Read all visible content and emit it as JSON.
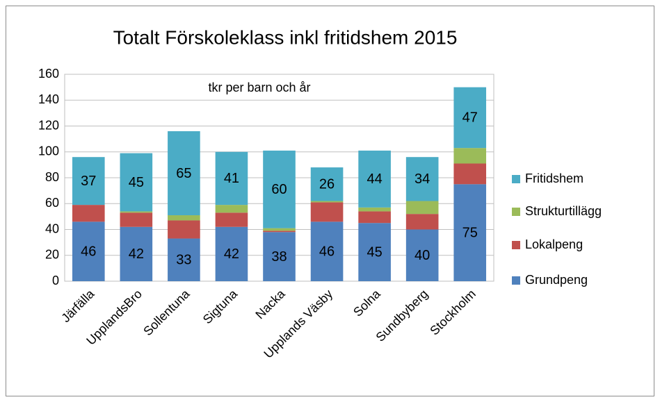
{
  "chart_data": {
    "type": "stacked_bar",
    "title": "Totalt Förskoleklass inkl fritidshem 2015",
    "annotation": "tkr per barn och år",
    "categories": [
      "Järfälla",
      "UpplandsBro",
      "Sollentuna",
      "Sigtuna",
      "Nacka",
      "Upplands Väsby",
      "Solna",
      "Sundbyberg",
      "Stockholm"
    ],
    "series": [
      {
        "name": "Grundpeng",
        "color": "#4f81bd",
        "show_labels": true,
        "values": [
          46,
          42,
          33,
          42,
          38,
          46,
          45,
          40,
          75
        ]
      },
      {
        "name": "Lokalpeng",
        "color": "#c0504d",
        "show_labels": false,
        "values": [
          13,
          11,
          14,
          11,
          1,
          15,
          9,
          12,
          16
        ]
      },
      {
        "name": "Strukturtillägg",
        "color": "#9bbb59",
        "show_labels": false,
        "values": [
          0,
          1,
          4,
          6,
          2,
          1,
          3,
          10,
          12
        ]
      },
      {
        "name": "Fritidshem",
        "color": "#4bacc6",
        "show_labels": true,
        "values": [
          37,
          45,
          65,
          41,
          60,
          26,
          44,
          34,
          47
        ]
      }
    ],
    "ylim": [
      0,
      160
    ],
    "yticks": [
      0,
      20,
      40,
      60,
      80,
      100,
      120,
      140,
      160
    ],
    "grid": true,
    "legend": "right"
  }
}
